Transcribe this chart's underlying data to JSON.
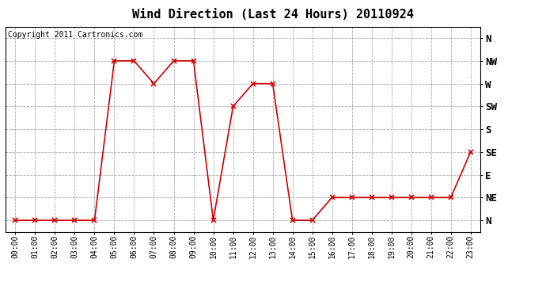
{
  "title": "Wind Direction (Last 24 Hours) 20110924",
  "copyright_text": "Copyright 2011 Cartronics.com",
  "x_labels": [
    "00:00",
    "01:00",
    "02:00",
    "03:00",
    "04:00",
    "05:00",
    "06:00",
    "07:00",
    "08:00",
    "09:00",
    "10:00",
    "11:00",
    "12:00",
    "13:00",
    "14:00",
    "15:00",
    "16:00",
    "17:00",
    "18:00",
    "19:00",
    "20:00",
    "21:00",
    "22:00",
    "23:00"
  ],
  "y_labels": [
    "N",
    "NE",
    "E",
    "SE",
    "S",
    "SW",
    "W",
    "NW",
    "N"
  ],
  "y_values": [
    0,
    1,
    2,
    3,
    4,
    5,
    6,
    7,
    8
  ],
  "data_x": [
    0,
    1,
    2,
    3,
    4,
    5,
    6,
    7,
    8,
    9,
    10,
    11,
    12,
    13,
    14,
    15,
    16,
    17,
    18,
    19,
    20,
    21,
    22,
    23
  ],
  "data_y": [
    0,
    0,
    0,
    0,
    0,
    7,
    7,
    6,
    7,
    7,
    0,
    5,
    6,
    6,
    0,
    0,
    1,
    1,
    1,
    1,
    1,
    1,
    1,
    3
  ],
  "line_color": "#cc0000",
  "marker": "x",
  "marker_color": "#cc0000",
  "marker_size": 4,
  "line_width": 1.2,
  "bg_color": "#ffffff",
  "plot_bg_color": "#ffffff",
  "grid_color": "#aaaaaa",
  "grid_style": "--",
  "title_fontsize": 11,
  "axis_fontsize": 7,
  "copyright_fontsize": 7
}
